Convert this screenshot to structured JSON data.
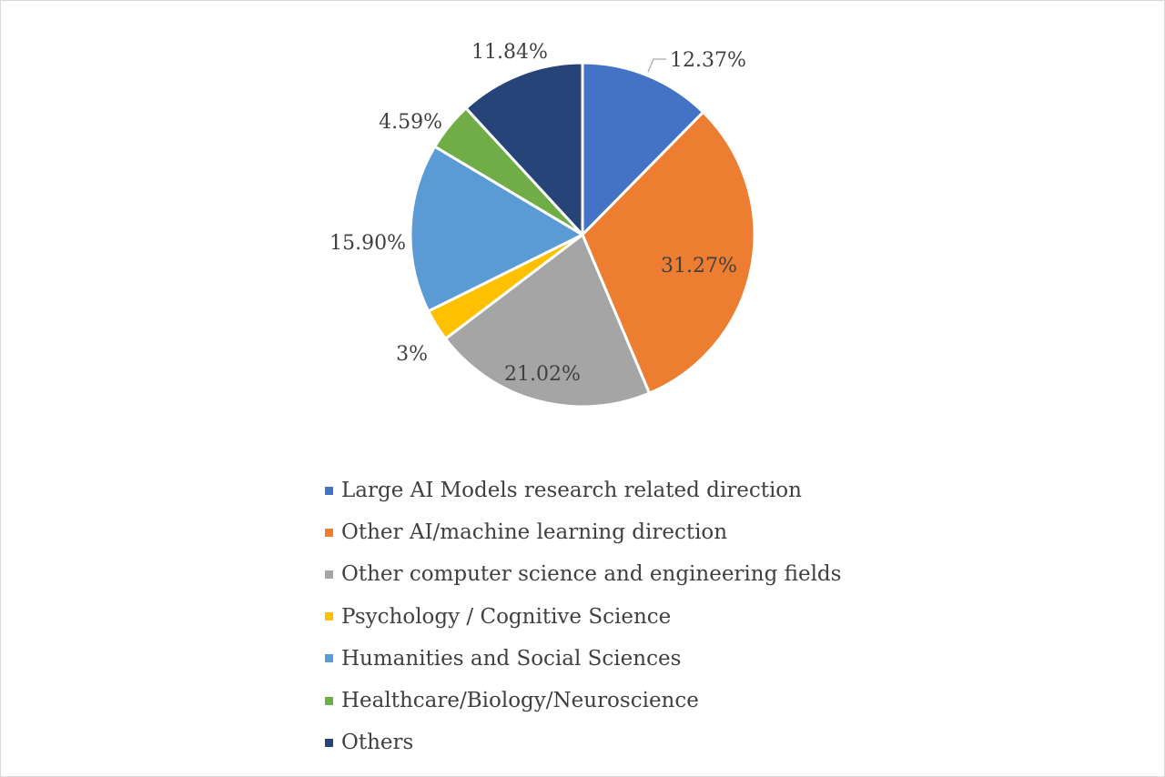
{
  "chart_data": {
    "type": "pie",
    "title": "",
    "legend_position": "bottom",
    "series": [
      {
        "name": "Large AI Models research related direction",
        "value": 12.37,
        "label": "12.37%",
        "color": "#4472C4"
      },
      {
        "name": "Other AI/machine learning direction",
        "value": 31.27,
        "label": "31.27%",
        "color": "#ED7D31"
      },
      {
        "name": "Other computer science and engineering fields",
        "value": 21.02,
        "label": "21.02%",
        "color": "#A5A5A5"
      },
      {
        "name": "Psychology / Cognitive Science",
        "value": 3,
        "label": "3%",
        "color": "#FFC000"
      },
      {
        "name": "Humanities and Social Sciences",
        "value": 15.9,
        "label": "15.90%",
        "color": "#5B9BD5"
      },
      {
        "name": "Healthcare/Biology/Neuroscience",
        "value": 4.59,
        "label": "4.59%",
        "color": "#70AD47"
      },
      {
        "name": "Others",
        "value": 11.84,
        "label": "11.84%",
        "color": "#264478"
      }
    ]
  }
}
